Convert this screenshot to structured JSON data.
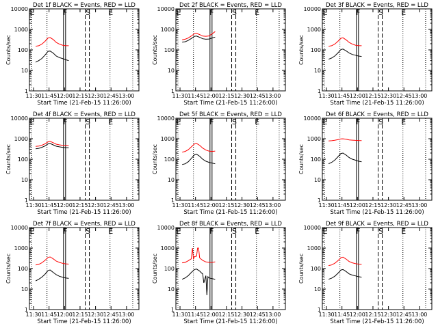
{
  "chart_data": [
    {
      "type": "line",
      "title": "Det 1f BLACK = Events, RED = LLD",
      "xlabel": "Start Time (21-Feb-15 11:26:00)",
      "ylabel": "Counts/sec",
      "xticks": [
        "11:30",
        "11:45",
        "12:00",
        "12:15",
        "12:30",
        "12:45",
        "13:00"
      ],
      "yticks": [
        "1",
        "10",
        "100",
        "1000",
        "10000"
      ],
      "ylim": [
        1,
        10000
      ],
      "yscale": "log",
      "markers": [
        "E",
        "F",
        "S",
        "E"
      ],
      "series": [
        {
          "name": "LLD",
          "color": "#ff0000",
          "x": [
            "11:32",
            "11:35",
            "11:38",
            "11:41",
            "11:44",
            "11:46",
            "11:49",
            "11:52",
            "11:55",
            "11:58",
            "12:01",
            "12:04"
          ],
          "y": [
            150,
            160,
            190,
            260,
            380,
            400,
            320,
            230,
            190,
            170,
            160,
            160
          ]
        },
        {
          "name": "Events",
          "color": "#000000",
          "x": [
            "11:32",
            "11:35",
            "11:38",
            "11:41",
            "11:44",
            "11:46",
            "11:49",
            "11:52",
            "11:55",
            "11:58",
            "12:01",
            "12:04"
          ],
          "y": [
            25,
            30,
            38,
            55,
            85,
            88,
            70,
            50,
            42,
            38,
            33,
            30
          ]
        }
      ]
    },
    {
      "type": "line",
      "title": "Det 2f BLACK = Events, RED = LLD",
      "xlabel": "Start Time (21-Feb-15 11:26:00)",
      "ylabel": "Counts/sec",
      "xticks": [
        "11:30",
        "11:45",
        "12:00",
        "12:15",
        "12:30",
        "12:45",
        "13:00"
      ],
      "yticks": [
        "1",
        "10",
        "100",
        "1000",
        "10000"
      ],
      "ylim": [
        1,
        10000
      ],
      "yscale": "log",
      "markers": [
        "E",
        "F",
        "S",
        "E"
      ],
      "series": [
        {
          "name": "LLD",
          "color": "#ff0000",
          "x": [
            "11:32",
            "11:35",
            "11:38",
            "11:41",
            "11:44",
            "11:46",
            "11:49",
            "11:52",
            "11:55",
            "11:58",
            "12:01",
            "12:04"
          ],
          "y": [
            310,
            330,
            380,
            480,
            620,
            640,
            560,
            470,
            460,
            480,
            600,
            780
          ]
        },
        {
          "name": "Events",
          "color": "#000000",
          "x": [
            "11:32",
            "11:35",
            "11:38",
            "11:41",
            "11:44",
            "11:46",
            "11:49",
            "11:52",
            "11:55",
            "11:58",
            "12:01",
            "12:04"
          ],
          "y": [
            240,
            250,
            290,
            360,
            460,
            470,
            410,
            350,
            330,
            340,
            380,
            420
          ]
        }
      ]
    },
    {
      "type": "line",
      "title": "Det 3f BLACK = Events, RED = LLD",
      "xlabel": "Start Time (21-Feb-15 11:26:00)",
      "ylabel": "Counts/sec",
      "xticks": [
        "11:30",
        "11:45",
        "12:00",
        "12:15",
        "12:30",
        "12:45",
        "13:00"
      ],
      "yticks": [
        "1",
        "10",
        "100",
        "1000",
        "10000"
      ],
      "ylim": [
        1,
        10000
      ],
      "yscale": "log",
      "markers": [
        "E",
        "F",
        "S",
        "E"
      ],
      "series": [
        {
          "name": "LLD",
          "color": "#ff0000",
          "x": [
            "11:32",
            "11:35",
            "11:38",
            "11:41",
            "11:44",
            "11:46",
            "11:49",
            "11:52",
            "11:55",
            "11:58",
            "12:01",
            "12:04"
          ],
          "y": [
            150,
            160,
            190,
            260,
            370,
            390,
            310,
            230,
            190,
            170,
            160,
            160
          ]
        },
        {
          "name": "Events",
          "color": "#000000",
          "x": [
            "11:32",
            "11:35",
            "11:38",
            "11:41",
            "11:44",
            "11:46",
            "11:49",
            "11:52",
            "11:55",
            "11:58",
            "12:01",
            "12:04"
          ],
          "y": [
            35,
            40,
            50,
            70,
            105,
            110,
            90,
            70,
            60,
            55,
            50,
            48
          ]
        }
      ]
    },
    {
      "type": "line",
      "title": "Det 4f BLACK = Events, RED = LLD",
      "xlabel": "Start Time (21-Feb-15 11:26:00)",
      "ylabel": "Counts/sec",
      "xticks": [
        "11:30",
        "11:45",
        "12:00",
        "12:15",
        "12:30",
        "12:45",
        "13:00"
      ],
      "yticks": [
        "1",
        "10",
        "100",
        "1000",
        "10000"
      ],
      "ylim": [
        1,
        10000
      ],
      "yscale": "log",
      "markers": [
        "E",
        "F",
        "S",
        "E"
      ],
      "series": [
        {
          "name": "LLD",
          "color": "#ff0000",
          "x": [
            "11:32",
            "11:35",
            "11:38",
            "11:41",
            "11:44",
            "11:46",
            "11:49",
            "11:52",
            "11:55",
            "11:58",
            "12:01",
            "12:04"
          ],
          "y": [
            420,
            440,
            480,
            560,
            700,
            740,
            640,
            540,
            500,
            480,
            470,
            460
          ]
        },
        {
          "name": "Events",
          "color": "#000000",
          "x": [
            "11:32",
            "11:35",
            "11:38",
            "11:41",
            "11:44",
            "11:46",
            "11:49",
            "11:52",
            "11:55",
            "11:58",
            "12:01",
            "12:04"
          ],
          "y": [
            320,
            340,
            380,
            440,
            560,
            590,
            500,
            430,
            400,
            380,
            370,
            360
          ]
        }
      ]
    },
    {
      "type": "line",
      "title": "Det 5f BLACK = Events, RED = LLD",
      "xlabel": "Start Time (21-Feb-15 11:26:00)",
      "ylabel": "Counts/sec",
      "xticks": [
        "11:30",
        "11:45",
        "12:00",
        "12:15",
        "12:30",
        "12:45",
        "13:00"
      ],
      "yticks": [
        "1",
        "10",
        "100",
        "1000",
        "10000"
      ],
      "ylim": [
        1,
        10000
      ],
      "yscale": "log",
      "markers": [
        "E",
        "F",
        "S",
        "E"
      ],
      "series": [
        {
          "name": "LLD",
          "color": "#ff0000",
          "x": [
            "11:32",
            "11:35",
            "11:38",
            "11:41",
            "11:44",
            "11:46",
            "11:49",
            "11:52",
            "11:55",
            "11:58",
            "12:01",
            "12:04"
          ],
          "y": [
            220,
            240,
            290,
            400,
            560,
            590,
            480,
            350,
            280,
            250,
            240,
            250
          ]
        },
        {
          "name": "Events",
          "color": "#000000",
          "x": [
            "11:32",
            "11:35",
            "11:38",
            "11:41",
            "11:44",
            "11:46",
            "11:49",
            "11:52",
            "11:55",
            "11:58",
            "12:01",
            "12:04"
          ],
          "y": [
            55,
            60,
            75,
            110,
            165,
            175,
            140,
            100,
            80,
            70,
            65,
            60
          ]
        }
      ]
    },
    {
      "type": "line",
      "title": "Det 6f BLACK = Events, RED = LLD",
      "xlabel": "Start Time (21-Feb-15 11:26:00)",
      "ylabel": "Counts/sec",
      "xticks": [
        "11:30",
        "11:45",
        "12:00",
        "12:15",
        "12:30",
        "12:45",
        "13:00"
      ],
      "yticks": [
        "1",
        "10",
        "100",
        "1000",
        "10000"
      ],
      "ylim": [
        1,
        10000
      ],
      "yscale": "log",
      "markers": [
        "E",
        "F",
        "S",
        "E"
      ],
      "series": [
        {
          "name": "LLD",
          "color": "#ff0000",
          "x": [
            "11:32",
            "11:35",
            "11:38",
            "11:41",
            "11:44",
            "11:46",
            "11:49",
            "11:52",
            "11:55",
            "11:58",
            "12:01",
            "12:04"
          ],
          "y": [
            780,
            800,
            840,
            900,
            980,
            990,
            950,
            880,
            850,
            830,
            820,
            810
          ]
        },
        {
          "name": "Events",
          "color": "#000000",
          "x": [
            "11:32",
            "11:35",
            "11:38",
            "11:41",
            "11:44",
            "11:46",
            "11:49",
            "11:52",
            "11:55",
            "11:58",
            "12:01",
            "12:04"
          ],
          "y": [
            60,
            70,
            90,
            130,
            190,
            200,
            160,
            120,
            100,
            90,
            80,
            75
          ]
        }
      ]
    },
    {
      "type": "line",
      "title": "Det 7f BLACK = Events, RED = LLD",
      "xlabel": "Start Time (21-Feb-15 11:26:00)",
      "ylabel": "Counts/sec",
      "xticks": [
        "11:30",
        "11:45",
        "12:00",
        "12:15",
        "12:30",
        "12:45",
        "13:00"
      ],
      "yticks": [
        "1",
        "10",
        "100",
        "1000",
        "10000"
      ],
      "ylim": [
        1,
        10000
      ],
      "yscale": "log",
      "markers": [
        "E",
        "F",
        "S",
        "E"
      ],
      "series": [
        {
          "name": "LLD",
          "color": "#ff0000",
          "x": [
            "11:32",
            "11:35",
            "11:38",
            "11:41",
            "11:44",
            "11:46",
            "11:49",
            "11:52",
            "11:55",
            "11:58",
            "12:01",
            "12:04"
          ],
          "y": [
            150,
            160,
            190,
            250,
            350,
            370,
            300,
            230,
            200,
            180,
            170,
            165
          ]
        },
        {
          "name": "Events",
          "color": "#000000",
          "x": [
            "11:32",
            "11:35",
            "11:38",
            "11:41",
            "11:44",
            "11:46",
            "11:49",
            "11:52",
            "11:55",
            "11:58",
            "12:01",
            "12:04"
          ],
          "y": [
            25,
            30,
            38,
            52,
            80,
            85,
            65,
            50,
            42,
            38,
            35,
            33
          ]
        }
      ]
    },
    {
      "type": "line",
      "title": "Det 8f BLACK = Events, RED = LLD",
      "xlabel": "Start Time (21-Feb-15 11:26:00)",
      "ylabel": "Counts/sec",
      "xticks": [
        "11:30",
        "11:45",
        "12:00",
        "12:15",
        "12:30",
        "12:45",
        "13:00"
      ],
      "yticks": [
        "1",
        "10",
        "100",
        "1000",
        "10000"
      ],
      "ylim": [
        1,
        10000
      ],
      "yscale": "log",
      "markers": [
        "E",
        "F",
        "S",
        "E"
      ],
      "series": [
        {
          "name": "LLD",
          "color": "#ff0000",
          "x": [
            "11:32",
            "11:35",
            "11:38",
            "11:41",
            "11:42",
            "11:43",
            "11:44",
            "11:46",
            "11:47",
            "11:48",
            "11:49",
            "11:52",
            "11:55",
            "11:58",
            "12:01",
            "12:04"
          ],
          "y": [
            190,
            200,
            240,
            300,
            1000,
            300,
            380,
            400,
            1000,
            1000,
            330,
            250,
            210,
            200,
            200,
            210
          ]
        },
        {
          "name": "Events",
          "color": "#000000",
          "x": [
            "11:32",
            "11:35",
            "11:38",
            "11:41",
            "11:44",
            "11:46",
            "11:49",
            "11:51",
            "11:52",
            "11:53",
            "11:55",
            "11:56",
            "11:57",
            "11:58",
            "12:01",
            "12:04"
          ],
          "y": [
            30,
            35,
            45,
            65,
            90,
            95,
            75,
            60,
            55,
            20,
            45,
            5,
            40,
            35,
            32,
            30
          ]
        }
      ]
    },
    {
      "type": "line",
      "title": "Det 9f BLACK = Events, RED = LLD",
      "xlabel": "Start Time (21-Feb-15 11:26:00)",
      "ylabel": "Counts/sec",
      "xticks": [
        "11:30",
        "11:45",
        "12:00",
        "12:15",
        "12:30",
        "12:45",
        "13:00"
      ],
      "yticks": [
        "1",
        "10",
        "100",
        "1000",
        "10000"
      ],
      "ylim": [
        1,
        10000
      ],
      "yscale": "log",
      "markers": [
        "E",
        "F",
        "S",
        "E"
      ],
      "series": [
        {
          "name": "LLD",
          "color": "#ff0000",
          "x": [
            "11:32",
            "11:35",
            "11:38",
            "11:41",
            "11:44",
            "11:46",
            "11:49",
            "11:52",
            "11:55",
            "11:58",
            "12:01",
            "12:04"
          ],
          "y": [
            140,
            150,
            180,
            240,
            340,
            360,
            290,
            220,
            190,
            175,
            165,
            160
          ]
        },
        {
          "name": "Events",
          "color": "#000000",
          "x": [
            "11:32",
            "11:35",
            "11:38",
            "11:41",
            "11:44",
            "11:46",
            "11:49",
            "11:52",
            "11:55",
            "11:58",
            "12:01",
            "12:04"
          ],
          "y": [
            30,
            34,
            42,
            58,
            85,
            90,
            72,
            55,
            48,
            44,
            40,
            38
          ]
        }
      ]
    }
  ]
}
